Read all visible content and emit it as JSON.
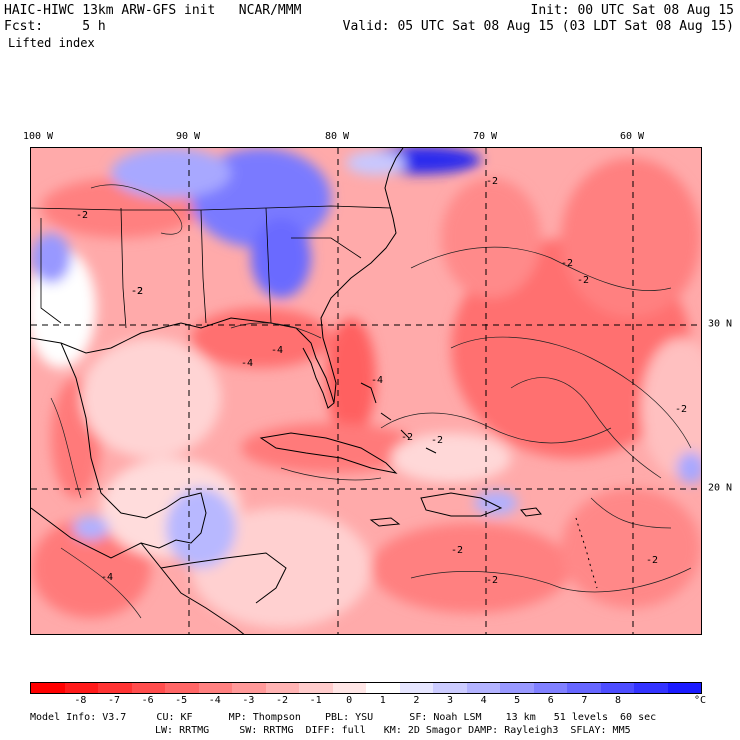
{
  "header": {
    "line1_left": "HAIC-HIWC 13km ARW-GFS init   NCAR/MMM",
    "line1_right": "Init: 00 UTC Sat 08 Aug 15",
    "line2_left": "Fcst:     5 h",
    "line2_right": "Valid: 05 UTC Sat 08 Aug 15 (03 LDT Sat 08 Aug 15)",
    "field": "Lifted index"
  },
  "map": {
    "lon_labels": [
      "100 W",
      "90 W",
      "80 W",
      "70 W",
      "60 W"
    ],
    "lat_labels": [
      "30 N",
      "20 N"
    ],
    "contour_labels": [
      "-2",
      "-2",
      "-2",
      "-2",
      "-4",
      "-4",
      "-2",
      "-2",
      "-2",
      "-2",
      "-4",
      "-2",
      "-2",
      "-2",
      "-2",
      "-4"
    ],
    "colors": {
      "negative": "#ff3a3a",
      "positive": "#3a3aff",
      "neutral": "#ffffff"
    }
  },
  "colorbar": {
    "ticks": [
      "-8",
      "-7",
      "-6",
      "-5",
      "-4",
      "-3",
      "-2",
      "-1",
      "0",
      "1",
      "2",
      "3",
      "4",
      "5",
      "6",
      "7",
      "8"
    ],
    "unit": "°C",
    "colors": [
      "#ff0000",
      "#ff1a1a",
      "#ff3333",
      "#ff4d4d",
      "#ff6666",
      "#ff8080",
      "#ff9999",
      "#ffb3b3",
      "#ffcccc",
      "#ffe6e6",
      "#ffffff",
      "#e6e6ff",
      "#ccccff",
      "#b3b3ff",
      "#9999ff",
      "#8080ff",
      "#6666ff",
      "#4d4dff",
      "#3333ff",
      "#1a1aff"
    ]
  },
  "footer": {
    "line1": "Model Info: V3.7     CU: KF      MP: Thompson    PBL: YSU      SF: Noah LSM    13 km   51 levels  60 sec",
    "line2": "LW: RRTMG     SW: RRTMG  DIFF: full   KM: 2D Smagor DAMP: Rayleigh3  SFLAY: MM5"
  }
}
